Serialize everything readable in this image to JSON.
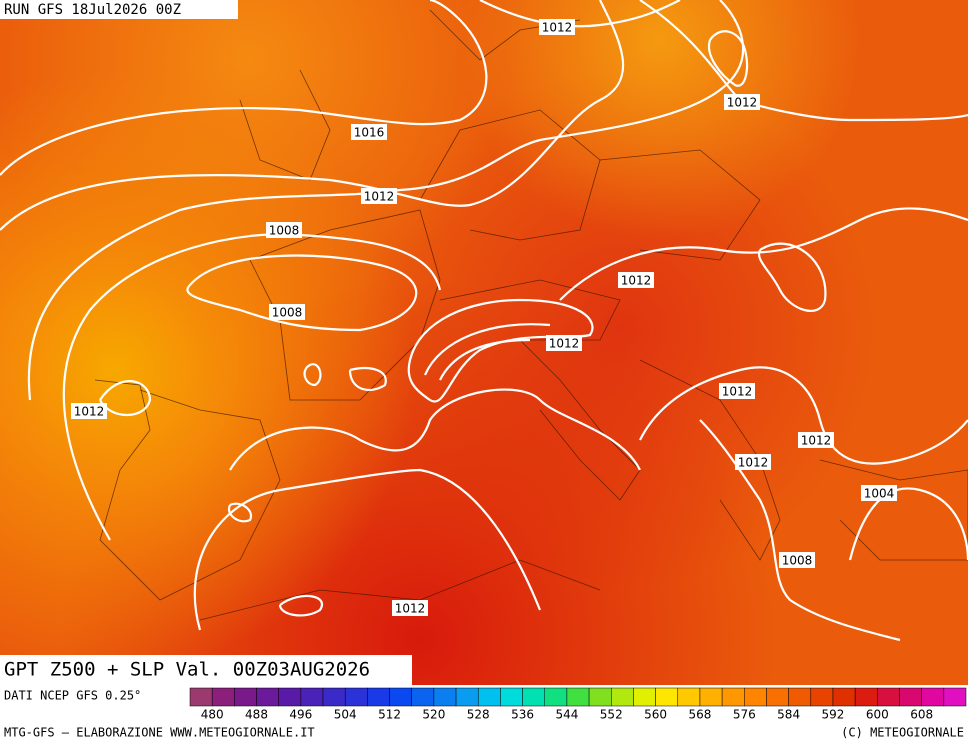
{
  "header": {
    "run": "RUN GFS 18Jul2026 00Z",
    "product": "GPT Z500 + SLP Val. 00Z03AUG2026"
  },
  "isobar_labels": [
    "1012",
    "1012",
    "1016",
    "1012",
    "1008",
    "1008",
    "1012",
    "1012",
    "1012",
    "1012",
    "1012",
    "1012",
    "1004",
    "1008",
    "1012"
  ],
  "legend": {
    "source": "DATI NCEP GFS 0.25°",
    "colors": [
      "#9b3a6e",
      "#8b1f7b",
      "#7a1a8a",
      "#6a1a9a",
      "#5a1aa8",
      "#4a22b8",
      "#3a2ac8",
      "#2a32d8",
      "#1a3ae8",
      "#0a48f0",
      "#0a64f0",
      "#0a80f0",
      "#0a9cf0",
      "#00c0f0",
      "#00dcdc",
      "#00e0b0",
      "#10e080",
      "#40e040",
      "#80e020",
      "#b0e810",
      "#e0f000",
      "#ffe600",
      "#ffc800",
      "#ffb000",
      "#ff9800",
      "#ff8400",
      "#f87000",
      "#f05a00",
      "#e84400",
      "#e03000",
      "#dc1c10",
      "#d81040",
      "#d80870",
      "#e008a0",
      "#e010c0"
    ],
    "ticks": [
      480,
      488,
      496,
      504,
      512,
      520,
      528,
      536,
      544,
      552,
      560,
      568,
      576,
      584,
      592,
      600,
      608
    ]
  },
  "footer": {
    "left": "MTG-GFS – ELABORAZIONE WWW.METEOGIORNALE.IT",
    "right": "(C) METEOGIORNALE"
  }
}
